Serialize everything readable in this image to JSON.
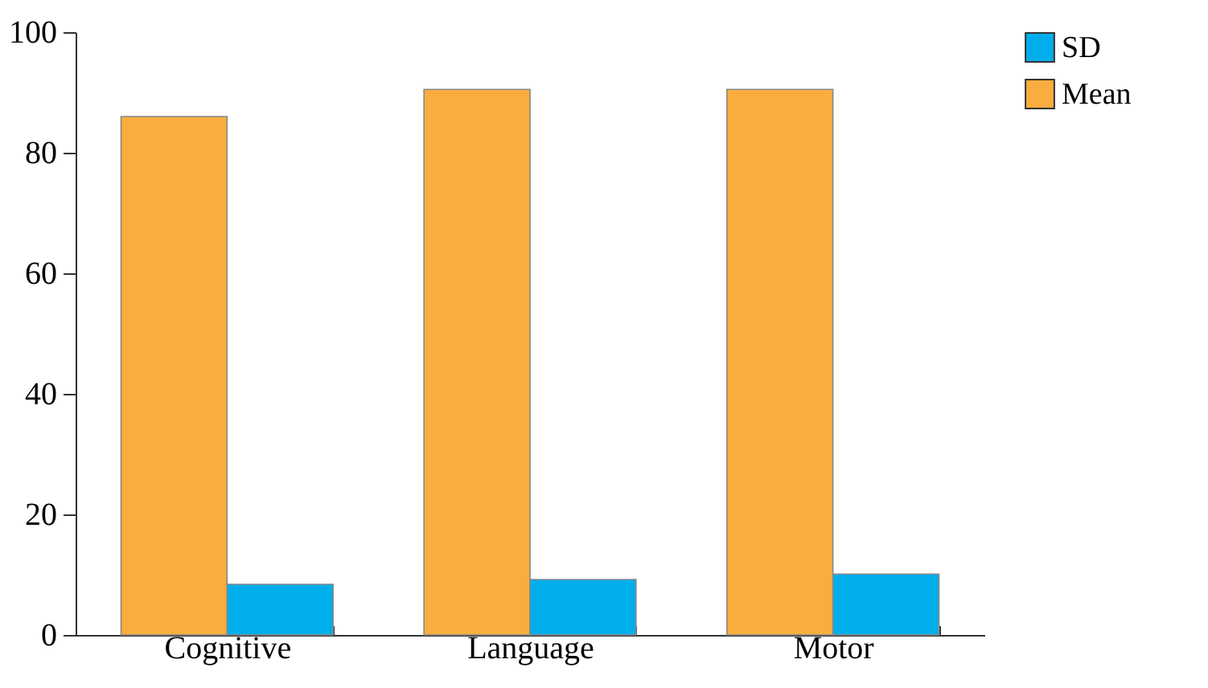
{
  "chart_data": {
    "type": "bar",
    "categories": [
      "Cognitive",
      "Language",
      "Motor"
    ],
    "series": [
      {
        "name": "Mean",
        "color": "#f9ad3f",
        "values": [
          86,
          90.5,
          90.5
        ]
      },
      {
        "name": "SD",
        "color": "#00aeeb",
        "values": [
          8.4,
          9.2,
          10.1
        ]
      }
    ],
    "ylim": [
      0,
      100
    ],
    "yticks": [
      0,
      20,
      40,
      60,
      80,
      100
    ],
    "grid": false,
    "legend": "right"
  }
}
